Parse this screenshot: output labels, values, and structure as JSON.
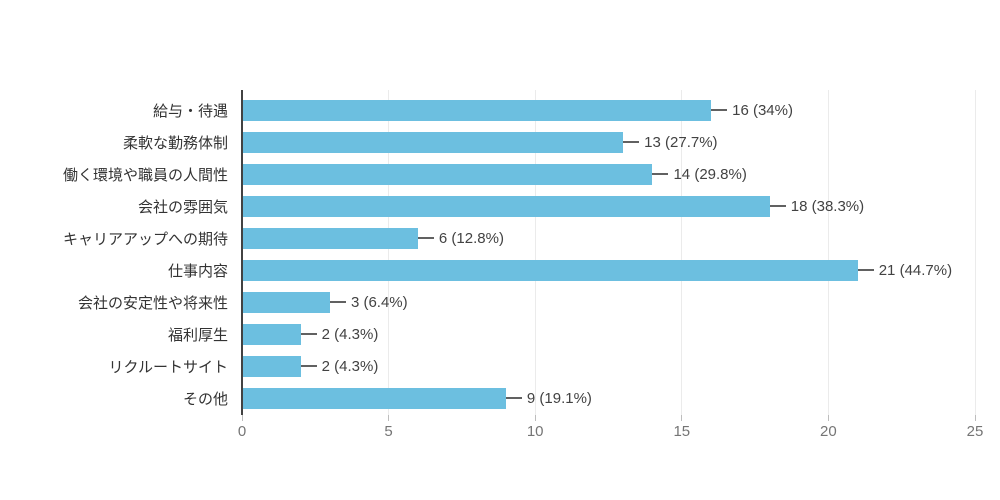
{
  "chart_data": {
    "type": "bar",
    "orientation": "horizontal",
    "title": "",
    "xlabel": "",
    "ylabel": "",
    "categories": [
      "給与・待遇",
      "柔軟な勤務体制",
      "働く環境や職員の人間性",
      "会社の雰囲気",
      "キャリアアップへの期待",
      "仕事内容",
      "会社の安定性や将来性",
      "福利厚生",
      "リクルートサイト",
      "その他"
    ],
    "values": [
      16,
      13,
      14,
      18,
      6,
      21,
      3,
      2,
      2,
      9
    ],
    "value_labels": [
      "16 (34%)",
      "13 (27.7%)",
      "14 (29.8%)",
      "18 (38.3%)",
      "6 (12.8%)",
      "21 (44.7%)",
      "3 (6.4%)",
      "2 (4.3%)",
      "2 (4.3%)",
      "9 (19.1%)"
    ],
    "x_ticks": [
      "0",
      "5",
      "10",
      "15",
      "20",
      "25"
    ],
    "x_tick_values": [
      0,
      5,
      10,
      15,
      20,
      25
    ],
    "xlim": [
      0,
      25
    ],
    "grid": true,
    "legend": false,
    "colors": {
      "bar": "#6cbfe0",
      "gridline": "#ebebeb",
      "axis_line": "#424242",
      "leader_line": "#616161",
      "category_text": "#333333",
      "value_text": "#424242",
      "tick_text": "#757575",
      "background": "#ffffff"
    }
  }
}
